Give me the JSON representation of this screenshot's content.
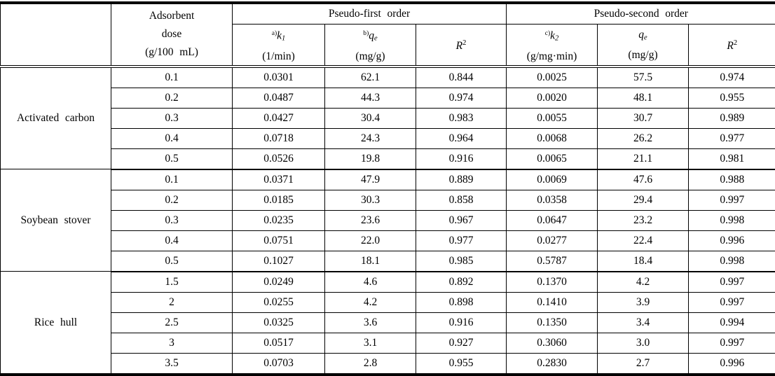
{
  "table": {
    "header": {
      "corner": "",
      "dose": {
        "line1": "Adsorbent",
        "line2": "dose",
        "line3": "(g/100 mL)"
      },
      "groups": [
        {
          "label": "Pseudo-first order"
        },
        {
          "label": "Pseudo-second order"
        }
      ],
      "params": [
        {
          "sup": "a)",
          "symbol": "k",
          "sub": "1",
          "unit": "(1/min)"
        },
        {
          "sup": "b)",
          "symbol": "q",
          "sub": "e",
          "unit": "(mg/g)"
        },
        {
          "symbol": "R",
          "power": "2"
        },
        {
          "sup": "c)",
          "symbol": "k",
          "sub": "2",
          "unit": "(g/mg·min)"
        },
        {
          "symbol": "q",
          "sub": "e",
          "unit": "(mg/g)"
        },
        {
          "symbol": "R",
          "power": "2"
        }
      ]
    },
    "column_semantics": [
      "dose",
      "k1",
      "qe-first",
      "r2-first",
      "k2",
      "qe-second",
      "r2-second"
    ],
    "sections": [
      {
        "material": "Activated carbon",
        "rows": [
          [
            "0.1",
            "0.0301",
            "62.1",
            "0.844",
            "0.0025",
            "57.5",
            "0.974"
          ],
          [
            "0.2",
            "0.0487",
            "44.3",
            "0.974",
            "0.0020",
            "48.1",
            "0.955"
          ],
          [
            "0.3",
            "0.0427",
            "30.4",
            "0.983",
            "0.0055",
            "30.7",
            "0.989"
          ],
          [
            "0.4",
            "0.0718",
            "24.3",
            "0.964",
            "0.0068",
            "26.2",
            "0.977"
          ],
          [
            "0.5",
            "0.0526",
            "19.8",
            "0.916",
            "0.0065",
            "21.1",
            "0.981"
          ]
        ]
      },
      {
        "material": "Soybean stover",
        "rows": [
          [
            "0.1",
            "0.0371",
            "47.9",
            "0.889",
            "0.0069",
            "47.6",
            "0.988"
          ],
          [
            "0.2",
            "0.0185",
            "30.3",
            "0.858",
            "0.0358",
            "29.4",
            "0.997"
          ],
          [
            "0.3",
            "0.0235",
            "23.6",
            "0.967",
            "0.0647",
            "23.2",
            "0.998"
          ],
          [
            "0.4",
            "0.0751",
            "22.0",
            "0.977",
            "0.0277",
            "22.4",
            "0.996"
          ],
          [
            "0.5",
            "0.1027",
            "18.1",
            "0.985",
            "0.5787",
            "18.4",
            "0.998"
          ]
        ]
      },
      {
        "material": "Rice hull",
        "rows": [
          [
            "1.5",
            "0.0249",
            "4.6",
            "0.892",
            "0.1370",
            "4.2",
            "0.997"
          ],
          [
            "2",
            "0.0255",
            "4.2",
            "0.898",
            "0.1410",
            "3.9",
            "0.997"
          ],
          [
            "2.5",
            "0.0325",
            "3.6",
            "0.916",
            "0.1350",
            "3.4",
            "0.994"
          ],
          [
            "3",
            "0.0517",
            "3.1",
            "0.927",
            "0.3060",
            "3.0",
            "0.997"
          ],
          [
            "3.5",
            "0.0703",
            "2.8",
            "0.955",
            "0.2830",
            "2.7",
            "0.996"
          ]
        ]
      }
    ]
  },
  "colors": {
    "line": "#000000",
    "text": "#000000",
    "background": "#ffffff"
  }
}
